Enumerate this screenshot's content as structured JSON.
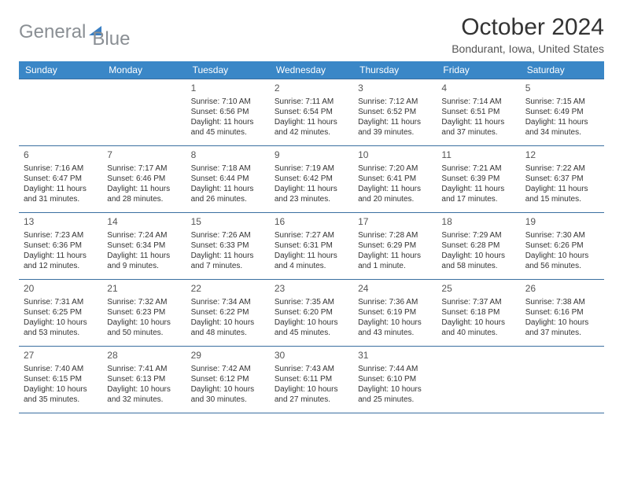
{
  "logo": {
    "part1": "General",
    "part2": "Blue"
  },
  "title": "October 2024",
  "location": "Bondurant, Iowa, United States",
  "colors": {
    "header_bg": "#3a87c7",
    "header_text": "#ffffff",
    "row_divider": "#3a6fa0",
    "logo_gray": "#8a8f94",
    "logo_blue": "#3a7fc4",
    "text": "#333333",
    "background": "#ffffff"
  },
  "day_headers": [
    "Sunday",
    "Monday",
    "Tuesday",
    "Wednesday",
    "Thursday",
    "Friday",
    "Saturday"
  ],
  "weeks": [
    [
      null,
      null,
      {
        "n": "1",
        "sunrise": "Sunrise: 7:10 AM",
        "sunset": "Sunset: 6:56 PM",
        "d1": "Daylight: 11 hours",
        "d2": "and 45 minutes."
      },
      {
        "n": "2",
        "sunrise": "Sunrise: 7:11 AM",
        "sunset": "Sunset: 6:54 PM",
        "d1": "Daylight: 11 hours",
        "d2": "and 42 minutes."
      },
      {
        "n": "3",
        "sunrise": "Sunrise: 7:12 AM",
        "sunset": "Sunset: 6:52 PM",
        "d1": "Daylight: 11 hours",
        "d2": "and 39 minutes."
      },
      {
        "n": "4",
        "sunrise": "Sunrise: 7:14 AM",
        "sunset": "Sunset: 6:51 PM",
        "d1": "Daylight: 11 hours",
        "d2": "and 37 minutes."
      },
      {
        "n": "5",
        "sunrise": "Sunrise: 7:15 AM",
        "sunset": "Sunset: 6:49 PM",
        "d1": "Daylight: 11 hours",
        "d2": "and 34 minutes."
      }
    ],
    [
      {
        "n": "6",
        "sunrise": "Sunrise: 7:16 AM",
        "sunset": "Sunset: 6:47 PM",
        "d1": "Daylight: 11 hours",
        "d2": "and 31 minutes."
      },
      {
        "n": "7",
        "sunrise": "Sunrise: 7:17 AM",
        "sunset": "Sunset: 6:46 PM",
        "d1": "Daylight: 11 hours",
        "d2": "and 28 minutes."
      },
      {
        "n": "8",
        "sunrise": "Sunrise: 7:18 AM",
        "sunset": "Sunset: 6:44 PM",
        "d1": "Daylight: 11 hours",
        "d2": "and 26 minutes."
      },
      {
        "n": "9",
        "sunrise": "Sunrise: 7:19 AM",
        "sunset": "Sunset: 6:42 PM",
        "d1": "Daylight: 11 hours",
        "d2": "and 23 minutes."
      },
      {
        "n": "10",
        "sunrise": "Sunrise: 7:20 AM",
        "sunset": "Sunset: 6:41 PM",
        "d1": "Daylight: 11 hours",
        "d2": "and 20 minutes."
      },
      {
        "n": "11",
        "sunrise": "Sunrise: 7:21 AM",
        "sunset": "Sunset: 6:39 PM",
        "d1": "Daylight: 11 hours",
        "d2": "and 17 minutes."
      },
      {
        "n": "12",
        "sunrise": "Sunrise: 7:22 AM",
        "sunset": "Sunset: 6:37 PM",
        "d1": "Daylight: 11 hours",
        "d2": "and 15 minutes."
      }
    ],
    [
      {
        "n": "13",
        "sunrise": "Sunrise: 7:23 AM",
        "sunset": "Sunset: 6:36 PM",
        "d1": "Daylight: 11 hours",
        "d2": "and 12 minutes."
      },
      {
        "n": "14",
        "sunrise": "Sunrise: 7:24 AM",
        "sunset": "Sunset: 6:34 PM",
        "d1": "Daylight: 11 hours",
        "d2": "and 9 minutes."
      },
      {
        "n": "15",
        "sunrise": "Sunrise: 7:26 AM",
        "sunset": "Sunset: 6:33 PM",
        "d1": "Daylight: 11 hours",
        "d2": "and 7 minutes."
      },
      {
        "n": "16",
        "sunrise": "Sunrise: 7:27 AM",
        "sunset": "Sunset: 6:31 PM",
        "d1": "Daylight: 11 hours",
        "d2": "and 4 minutes."
      },
      {
        "n": "17",
        "sunrise": "Sunrise: 7:28 AM",
        "sunset": "Sunset: 6:29 PM",
        "d1": "Daylight: 11 hours",
        "d2": "and 1 minute."
      },
      {
        "n": "18",
        "sunrise": "Sunrise: 7:29 AM",
        "sunset": "Sunset: 6:28 PM",
        "d1": "Daylight: 10 hours",
        "d2": "and 58 minutes."
      },
      {
        "n": "19",
        "sunrise": "Sunrise: 7:30 AM",
        "sunset": "Sunset: 6:26 PM",
        "d1": "Daylight: 10 hours",
        "d2": "and 56 minutes."
      }
    ],
    [
      {
        "n": "20",
        "sunrise": "Sunrise: 7:31 AM",
        "sunset": "Sunset: 6:25 PM",
        "d1": "Daylight: 10 hours",
        "d2": "and 53 minutes."
      },
      {
        "n": "21",
        "sunrise": "Sunrise: 7:32 AM",
        "sunset": "Sunset: 6:23 PM",
        "d1": "Daylight: 10 hours",
        "d2": "and 50 minutes."
      },
      {
        "n": "22",
        "sunrise": "Sunrise: 7:34 AM",
        "sunset": "Sunset: 6:22 PM",
        "d1": "Daylight: 10 hours",
        "d2": "and 48 minutes."
      },
      {
        "n": "23",
        "sunrise": "Sunrise: 7:35 AM",
        "sunset": "Sunset: 6:20 PM",
        "d1": "Daylight: 10 hours",
        "d2": "and 45 minutes."
      },
      {
        "n": "24",
        "sunrise": "Sunrise: 7:36 AM",
        "sunset": "Sunset: 6:19 PM",
        "d1": "Daylight: 10 hours",
        "d2": "and 43 minutes."
      },
      {
        "n": "25",
        "sunrise": "Sunrise: 7:37 AM",
        "sunset": "Sunset: 6:18 PM",
        "d1": "Daylight: 10 hours",
        "d2": "and 40 minutes."
      },
      {
        "n": "26",
        "sunrise": "Sunrise: 7:38 AM",
        "sunset": "Sunset: 6:16 PM",
        "d1": "Daylight: 10 hours",
        "d2": "and 37 minutes."
      }
    ],
    [
      {
        "n": "27",
        "sunrise": "Sunrise: 7:40 AM",
        "sunset": "Sunset: 6:15 PM",
        "d1": "Daylight: 10 hours",
        "d2": "and 35 minutes."
      },
      {
        "n": "28",
        "sunrise": "Sunrise: 7:41 AM",
        "sunset": "Sunset: 6:13 PM",
        "d1": "Daylight: 10 hours",
        "d2": "and 32 minutes."
      },
      {
        "n": "29",
        "sunrise": "Sunrise: 7:42 AM",
        "sunset": "Sunset: 6:12 PM",
        "d1": "Daylight: 10 hours",
        "d2": "and 30 minutes."
      },
      {
        "n": "30",
        "sunrise": "Sunrise: 7:43 AM",
        "sunset": "Sunset: 6:11 PM",
        "d1": "Daylight: 10 hours",
        "d2": "and 27 minutes."
      },
      {
        "n": "31",
        "sunrise": "Sunrise: 7:44 AM",
        "sunset": "Sunset: 6:10 PM",
        "d1": "Daylight: 10 hours",
        "d2": "and 25 minutes."
      },
      null,
      null
    ]
  ]
}
